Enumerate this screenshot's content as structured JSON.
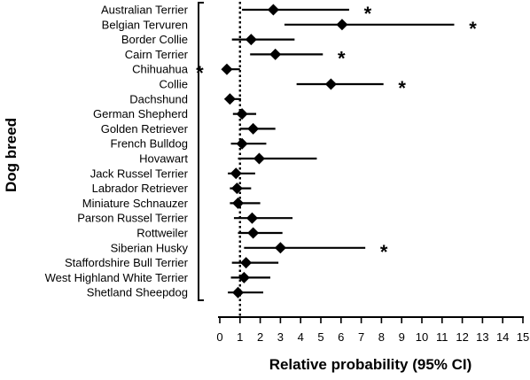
{
  "chart_data": {
    "type": "forest",
    "xlabel": "Relative probability (95% CI)",
    "ylabel": "Dog breed",
    "xlim": [
      0,
      15
    ],
    "xticks": [
      0,
      1,
      2,
      3,
      4,
      5,
      6,
      7,
      8,
      9,
      10,
      11,
      12,
      13,
      14,
      15
    ],
    "reference_line": 1,
    "marker": "diamond",
    "significance_marker": "*",
    "categories": [
      "Australian Terrier",
      "Belgian Tervuren",
      "Border Collie",
      "Cairn Terrier",
      "Chihuahua",
      "Collie",
      "Dachshund",
      "German Shepherd",
      "Golden Retriever",
      "French Bulldog",
      "Hovawart",
      "Jack Russel Terrier",
      "Labrador Retriever",
      "Miniature Schnauzer",
      "Parson Russel Terrier",
      "Rottweiler",
      "Siberian Husky",
      "Staffordshire Bull Terrier",
      "West Highland White Terrier",
      "Shetland Sheepdog"
    ],
    "estimates": [
      2.65,
      6.05,
      1.55,
      2.75,
      0.35,
      5.5,
      0.5,
      1.1,
      1.65,
      1.1,
      1.95,
      0.8,
      0.85,
      0.9,
      1.6,
      1.65,
      3.0,
      1.3,
      1.2,
      0.9
    ],
    "ci_low": [
      1.1,
      3.2,
      0.6,
      1.5,
      0.15,
      3.8,
      0.25,
      0.65,
      1.0,
      0.55,
      0.9,
      0.4,
      0.5,
      0.5,
      0.7,
      0.9,
      1.2,
      0.6,
      0.55,
      0.4
    ],
    "ci_high": [
      6.4,
      11.6,
      3.7,
      5.1,
      1.0,
      8.1,
      1.05,
      1.8,
      2.75,
      2.3,
      4.8,
      1.75,
      1.55,
      2.0,
      3.6,
      3.1,
      7.2,
      2.9,
      2.5,
      2.15
    ],
    "significant": [
      true,
      true,
      false,
      true,
      true,
      true,
      false,
      false,
      false,
      false,
      false,
      false,
      false,
      false,
      false,
      false,
      true,
      false,
      false,
      false
    ],
    "star_side": [
      "right",
      "right",
      "right",
      "right",
      "left",
      "right",
      "right",
      "right",
      "right",
      "right",
      "right",
      "right",
      "right",
      "right",
      "right",
      "right",
      "right",
      "right",
      "right",
      "right"
    ]
  }
}
